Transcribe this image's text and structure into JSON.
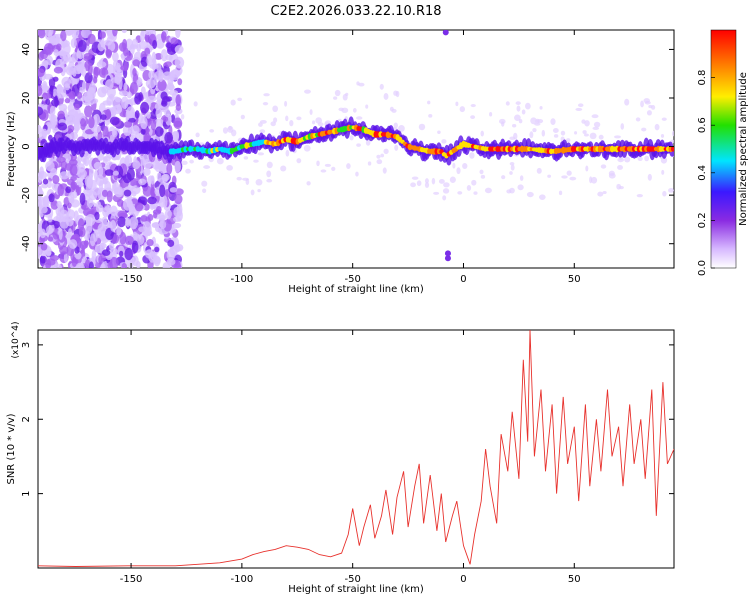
{
  "title": "C2E2.2026.033.22.10.R18",
  "chart_data": [
    {
      "type": "heatmap",
      "xlabel": "Height of straight line (km)",
      "ylabel": "Frequency (Hz)",
      "xlim": [
        -192,
        95
      ],
      "ylim": [
        -50,
        48
      ],
      "xticks": [
        -150,
        -100,
        -50,
        0,
        50
      ],
      "yticks": [
        -40,
        -20,
        0,
        20,
        40
      ],
      "grid": false,
      "colorbar": {
        "label": "Normalized spectral amplitude",
        "range": [
          0,
          1
        ],
        "ticks": [
          "0.0",
          "0.2",
          "0.4",
          "0.6",
          "0.8"
        ],
        "colors": [
          "#ffffff",
          "#d7b8ff",
          "#8a2be2",
          "#3b18ff",
          "#00e5ff",
          "#22e000",
          "#ffee00",
          "#ff8000",
          "#ff0000"
        ]
      },
      "ridge": {
        "x": [
          -192,
          -185,
          -175,
          -165,
          -150,
          -140,
          -135,
          -130,
          -125,
          -120,
          -115,
          -110,
          -105,
          -100,
          -95,
          -90,
          -85,
          -80,
          -75,
          -70,
          -65,
          -60,
          -55,
          -50,
          -45,
          -40,
          -35,
          -30,
          -25,
          -20,
          -15,
          -10,
          -8,
          -5,
          0,
          5,
          10,
          20,
          30,
          40,
          50,
          60,
          70,
          80,
          90,
          95
        ],
        "y": [
          -3,
          0,
          0,
          0,
          0,
          0,
          -2,
          -2,
          -1,
          -1,
          -2,
          -1,
          -2,
          0,
          1,
          2,
          1,
          3,
          2,
          4,
          5,
          6,
          7,
          8,
          7,
          5,
          5,
          4,
          0,
          -1,
          -2,
          -2,
          -4,
          -2,
          1,
          0,
          -1,
          -1,
          -1,
          -2,
          -1,
          -1,
          -1,
          -1,
          -1,
          -1
        ]
      }
    },
    {
      "type": "line",
      "xlabel": "Height of straight line (km)",
      "ylabel": "SNR (10 * v/v)",
      "y_multiplier": "(x10^4)",
      "xlim": [
        -192,
        95
      ],
      "ylim": [
        0,
        3.2
      ],
      "xticks": [
        -150,
        -100,
        -50,
        0,
        50
      ],
      "yticks": [
        1,
        2,
        3
      ],
      "color": "#e8322d",
      "series": [
        {
          "x": [
            -192,
            -175,
            -150,
            -130,
            -120,
            -110,
            -100,
            -95,
            -90,
            -85,
            -80,
            -75,
            -70,
            -65,
            -60,
            -55,
            -52,
            -50,
            -47,
            -45,
            -42,
            -40,
            -37,
            -35,
            -32,
            -30,
            -27,
            -25,
            -22,
            -20,
            -18,
            -15,
            -12,
            -10,
            -8,
            -5,
            -3,
            0,
            3,
            5,
            8,
            10,
            12,
            15,
            17,
            20,
            22,
            25,
            27,
            29,
            30,
            32,
            35,
            37,
            40,
            42,
            45,
            47,
            50,
            52,
            55,
            57,
            60,
            62,
            65,
            67,
            70,
            72,
            75,
            77,
            80,
            82,
            85,
            87,
            90,
            92,
            95
          ],
          "y": [
            0.03,
            0.02,
            0.03,
            0.03,
            0.05,
            0.07,
            0.12,
            0.18,
            0.22,
            0.25,
            0.3,
            0.28,
            0.25,
            0.18,
            0.15,
            0.2,
            0.45,
            0.8,
            0.3,
            0.55,
            0.85,
            0.4,
            0.7,
            1.05,
            0.45,
            0.95,
            1.3,
            0.55,
            1.1,
            1.4,
            0.6,
            1.25,
            0.5,
            1.0,
            0.35,
            0.7,
            0.9,
            0.3,
            0.05,
            0.45,
            0.9,
            1.6,
            1.1,
            0.6,
            1.8,
            1.3,
            2.1,
            1.2,
            2.8,
            1.7,
            3.2,
            1.5,
            2.4,
            1.3,
            2.2,
            1.0,
            2.3,
            1.4,
            1.9,
            0.9,
            2.2,
            1.1,
            2.0,
            1.3,
            2.4,
            1.5,
            1.9,
            1.1,
            2.2,
            1.4,
            2.0,
            1.2,
            2.4,
            0.7,
            2.5,
            1.4,
            1.6
          ]
        }
      ]
    }
  ]
}
